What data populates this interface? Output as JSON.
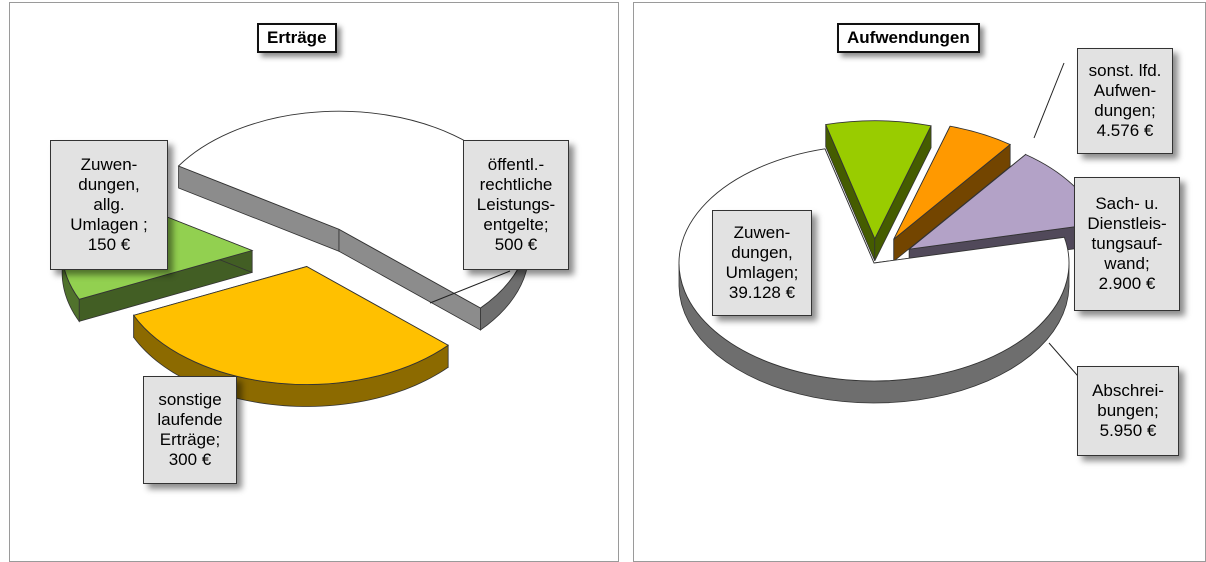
{
  "chart_data": [
    {
      "type": "pie",
      "title": "Erträge",
      "slices": [
        {
          "label": "öffentl.-\nrechtliche\nLeistungs-\nentgelte;\n500 €",
          "value": 500,
          "color": "#ffffff"
        },
        {
          "label": "sonstige\nlaufende\nErträge;\n300 €",
          "value": 300,
          "color": "#ffc000"
        },
        {
          "label": "Zuwen-\ndungen,\nallg.\nUmlagen ;\n150 €",
          "value": 150,
          "color": "#92d050"
        }
      ]
    },
    {
      "type": "pie",
      "title": "Aufwendungen",
      "slices": [
        {
          "label": "Zuwen-\ndungen,\nUmlagen;\n39.128 €",
          "value": 39128,
          "color": "#ffffff"
        },
        {
          "label": "sonst. lfd.\nAufwen-\ndungen;\n4.576 €",
          "value": 4576,
          "color": "#99cc00"
        },
        {
          "label": "Sach- u.\nDienstleis-\ntungsauf-\nwand;\n2.900 €",
          "value": 2900,
          "color": "#ff9900"
        },
        {
          "label": "Abschrei-\nbungen;\n5.950 €",
          "value": 5950,
          "color": "#b3a2c7"
        }
      ]
    }
  ]
}
